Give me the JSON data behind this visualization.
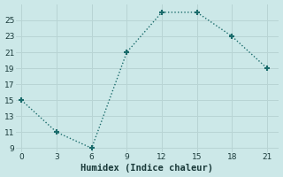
{
  "xlabel": "Humidex (Indice chaleur)",
  "x": [
    0,
    3,
    6,
    9,
    12,
    15,
    18,
    21
  ],
  "y": [
    15,
    11,
    9,
    21,
    26,
    26,
    23,
    19
  ],
  "line_color": "#1a6b6b",
  "marker": "+",
  "marker_size": 5,
  "marker_lw": 1.5,
  "bg_color": "#cce8e8",
  "grid_color": "#b8d4d4",
  "xlim": [
    -0.5,
    22
  ],
  "ylim": [
    8.5,
    27
  ],
  "xticks": [
    0,
    3,
    6,
    9,
    12,
    15,
    18,
    21
  ],
  "yticks": [
    9,
    11,
    13,
    15,
    17,
    19,
    21,
    23,
    25
  ],
  "tick_fontsize": 6.5,
  "label_fontsize": 7.5,
  "linewidth": 1.0,
  "linestyle": "dotted"
}
